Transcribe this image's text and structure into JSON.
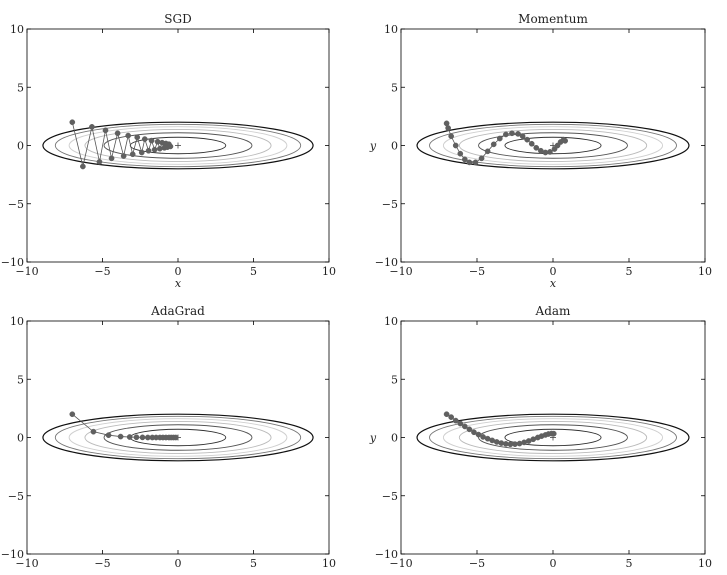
{
  "chart_data": [
    {
      "type": "scatter",
      "title": "SGD",
      "xlabel": "x",
      "ylabel": "",
      "xlim": [
        -10,
        10
      ],
      "ylim": [
        -10,
        10
      ],
      "xticks": [
        -10,
        -5,
        0,
        5,
        10
      ],
      "yticks": [
        -10,
        -5,
        0,
        5,
        10
      ],
      "xtick_labels": [
        "−10",
        "−5",
        "0",
        "5",
        "10"
      ],
      "ytick_labels": [
        "−10",
        "−5",
        "0",
        "5",
        "10"
      ],
      "grid": false,
      "contour_levels": [
        0.5,
        1.2,
        1.9,
        2.6,
        3.3,
        4.0
      ],
      "contour_colors": [
        "#333333",
        "#555555",
        "#bbbbbb",
        "#cfcfcf",
        "#777777",
        "#111111"
      ],
      "minimum": [
        0,
        0
      ],
      "points": {
        "x": [
          -7.0,
          -6.3,
          -5.7,
          -5.2,
          -4.8,
          -4.4,
          -4.0,
          -3.6,
          -3.3,
          -3.0,
          -2.7,
          -2.4,
          -2.2,
          -1.95,
          -1.75,
          -1.55,
          -1.35,
          -1.2,
          -1.05,
          -0.9,
          -0.8,
          -0.7,
          -0.6,
          -0.5
        ],
        "y": [
          2.0,
          -1.8,
          1.6,
          -1.4,
          1.3,
          -1.1,
          1.05,
          -0.9,
          0.85,
          -0.75,
          0.7,
          -0.6,
          0.55,
          -0.45,
          0.42,
          -0.36,
          0.32,
          -0.27,
          0.24,
          -0.2,
          0.17,
          -0.14,
          0.11,
          -0.08
        ]
      }
    },
    {
      "type": "scatter",
      "title": "Momentum",
      "xlabel": "x",
      "ylabel": "y",
      "xlim": [
        -10,
        10
      ],
      "ylim": [
        -10,
        10
      ],
      "xticks": [
        -10,
        -5,
        0,
        5,
        10
      ],
      "yticks": [
        -10,
        -5,
        0,
        5,
        10
      ],
      "xtick_labels": [
        "−10",
        "−5",
        "0",
        "5",
        "10"
      ],
      "ytick_labels": [
        "−10",
        "−5",
        "0",
        "5",
        "10"
      ],
      "grid": false,
      "contour_levels": [
        0.5,
        1.2,
        1.9,
        2.6,
        3.3,
        4.0
      ],
      "contour_colors": [
        "#333333",
        "#555555",
        "#bbbbbb",
        "#cfcfcf",
        "#777777",
        "#111111"
      ],
      "minimum": [
        0,
        0
      ],
      "points": {
        "x": [
          -7.0,
          -6.9,
          -6.7,
          -6.4,
          -6.1,
          -5.8,
          -5.5,
          -5.1,
          -4.7,
          -4.3,
          -3.9,
          -3.5,
          -3.1,
          -2.7,
          -2.3,
          -2.0,
          -1.7,
          -1.4,
          -1.1,
          -0.8,
          -0.5,
          -0.2,
          0.1,
          0.3,
          0.5,
          0.7,
          0.8
        ],
        "y": [
          1.9,
          1.5,
          0.8,
          0.0,
          -0.7,
          -1.2,
          -1.45,
          -1.45,
          -1.1,
          -0.5,
          0.1,
          0.6,
          0.95,
          1.05,
          1.0,
          0.8,
          0.5,
          0.15,
          -0.2,
          -0.45,
          -0.6,
          -0.55,
          -0.3,
          0.0,
          0.3,
          0.5,
          0.4
        ]
      }
    },
    {
      "type": "scatter",
      "title": "AdaGrad",
      "xlabel": "",
      "ylabel": "",
      "xlim": [
        -10,
        10
      ],
      "ylim": [
        -10,
        10
      ],
      "xticks": [
        -10,
        -5,
        0,
        5,
        10
      ],
      "yticks": [
        -10,
        -5,
        0,
        5,
        10
      ],
      "xtick_labels": [
        "−10",
        "−5",
        "0",
        "5",
        "10"
      ],
      "ytick_labels": [
        "−10",
        "−5",
        "0",
        "5",
        "10"
      ],
      "grid": false,
      "contour_levels": [
        0.5,
        1.2,
        1.9,
        2.6,
        3.3,
        4.0
      ],
      "contour_colors": [
        "#333333",
        "#555555",
        "#bbbbbb",
        "#cfcfcf",
        "#777777",
        "#111111"
      ],
      "minimum": [
        0,
        0
      ],
      "points": {
        "x": [
          -7.0,
          -5.6,
          -4.6,
          -3.8,
          -3.2,
          -2.75,
          -2.35,
          -2.0,
          -1.7,
          -1.45,
          -1.2,
          -1.0,
          -0.8,
          -0.6,
          -0.45,
          -0.3,
          -0.15
        ],
        "y": [
          2.0,
          0.5,
          0.2,
          0.08,
          0.04,
          0.02,
          0.01,
          0.0,
          0.0,
          0.0,
          0.0,
          0.0,
          0.0,
          0.0,
          0.0,
          0.0,
          0.0
        ]
      }
    },
    {
      "type": "scatter",
      "title": "Adam",
      "xlabel": "",
      "ylabel": "y",
      "xlim": [
        -10,
        10
      ],
      "ylim": [
        -10,
        10
      ],
      "xticks": [
        -10,
        -5,
        0,
        5,
        10
      ],
      "yticks": [
        -10,
        -5,
        0,
        5,
        10
      ],
      "xtick_labels": [
        "−10",
        "−5",
        "0",
        "5",
        "10"
      ],
      "ytick_labels": [
        "−10",
        "−5",
        "0",
        "5",
        "10"
      ],
      "grid": false,
      "contour_levels": [
        0.5,
        1.2,
        1.9,
        2.6,
        3.3,
        4.0
      ],
      "contour_colors": [
        "#333333",
        "#555555",
        "#bbbbbb",
        "#cfcfcf",
        "#777777",
        "#111111"
      ],
      "minimum": [
        0,
        0
      ],
      "points": {
        "x": [
          -7.0,
          -6.7,
          -6.4,
          -6.1,
          -5.8,
          -5.5,
          -5.2,
          -4.9,
          -4.6,
          -4.3,
          -4.0,
          -3.7,
          -3.4,
          -3.1,
          -2.8,
          -2.5,
          -2.2,
          -1.9,
          -1.6,
          -1.3,
          -1.0,
          -0.75,
          -0.5,
          -0.3,
          -0.1,
          0.05
        ],
        "y": [
          2.0,
          1.75,
          1.45,
          1.2,
          0.95,
          0.7,
          0.45,
          0.25,
          0.05,
          -0.1,
          -0.25,
          -0.38,
          -0.48,
          -0.55,
          -0.58,
          -0.57,
          -0.52,
          -0.42,
          -0.3,
          -0.15,
          0.0,
          0.12,
          0.22,
          0.3,
          0.34,
          0.33
        ]
      }
    }
  ]
}
